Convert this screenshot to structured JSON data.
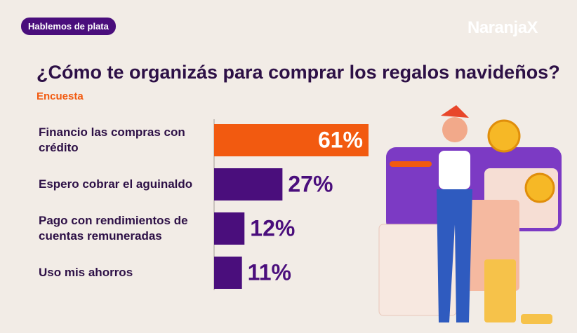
{
  "badge": "Hablemos de plata",
  "logo": "NaranjaX",
  "chart_data": {
    "type": "bar",
    "orientation": "horizontal",
    "title": "¿Cómo te organizás para comprar los regalos navideños?",
    "subtitle": "Encuesta",
    "categories": [
      "Financio las compras con crédito",
      "Espero cobrar el aguinaldo",
      "Pago con rendimientos de cuentas remuneradas",
      "Uso mis ahorros"
    ],
    "values": [
      61,
      27,
      12,
      11
    ],
    "value_labels": [
      "61%",
      "27%",
      "12%",
      "11%"
    ],
    "colors": [
      "#f25a10",
      "#4a0e7c",
      "#4a0e7c",
      "#4a0e7c"
    ]
  }
}
